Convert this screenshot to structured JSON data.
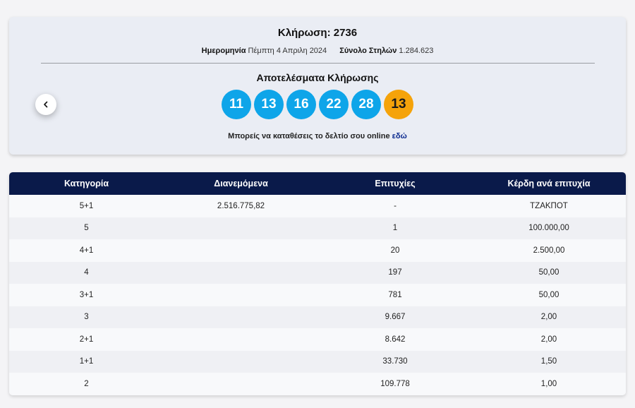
{
  "draw": {
    "title": "Κλήρωση: 2736",
    "date_label": "Ημερομηνία",
    "date_value": "Πέμπτη 4 Απριλη 2024",
    "columns_label": "Σύνολο Στηλών",
    "columns_value": "1.284.623",
    "results_title": "Αποτελέσματα Κλήρωσης",
    "numbers": [
      "11",
      "13",
      "16",
      "22",
      "28"
    ],
    "joker": "13",
    "online_text": "Μπορείς να καταθέσεις το δελτίο σου online",
    "online_link": "εδώ"
  },
  "colors": {
    "ball": "#0ea5e9",
    "joker": "#f5a30a",
    "header": "#0a1a4a"
  },
  "icons": {
    "prev": "chevron-left-icon"
  },
  "table": {
    "headers": {
      "category": "Κατηγορία",
      "distributed": "Διανεμόμενα",
      "winners": "Επιτυχίες",
      "prize": "Κέρδη ανά επιτυχία"
    },
    "rows": [
      {
        "category": "5+1",
        "distributed": "2.516.775,82",
        "winners": "-",
        "prize": "ΤΖΑΚΠΟΤ"
      },
      {
        "category": "5",
        "distributed": "",
        "winners": "1",
        "prize": "100.000,00"
      },
      {
        "category": "4+1",
        "distributed": "",
        "winners": "20",
        "prize": "2.500,00"
      },
      {
        "category": "4",
        "distributed": "",
        "winners": "197",
        "prize": "50,00"
      },
      {
        "category": "3+1",
        "distributed": "",
        "winners": "781",
        "prize": "50,00"
      },
      {
        "category": "3",
        "distributed": "",
        "winners": "9.667",
        "prize": "2,00"
      },
      {
        "category": "2+1",
        "distributed": "",
        "winners": "8.642",
        "prize": "2,00"
      },
      {
        "category": "1+1",
        "distributed": "",
        "winners": "33.730",
        "prize": "1,50"
      },
      {
        "category": "2",
        "distributed": "",
        "winners": "109.778",
        "prize": "1,00"
      }
    ]
  }
}
